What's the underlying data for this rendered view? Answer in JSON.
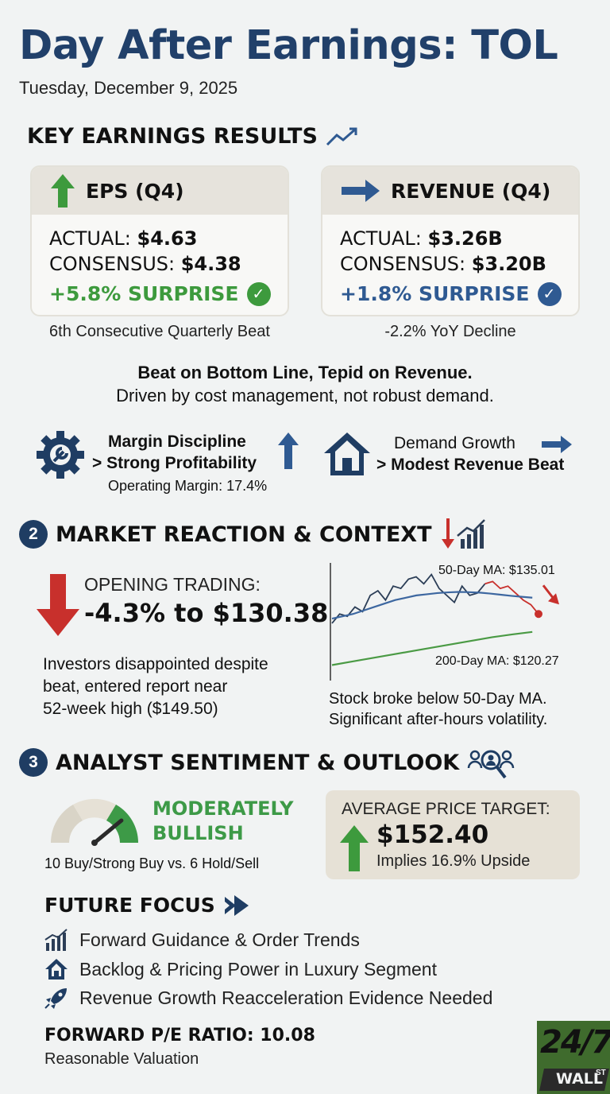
{
  "header": {
    "title": "Day After Earnings: TOL",
    "date": "Tuesday, December 9, 2025"
  },
  "key_results": {
    "heading": "KEY EARNINGS RESULTS",
    "eps": {
      "title": "EPS (Q4)",
      "actual_label": "ACTUAL:",
      "actual_value": "$4.63",
      "consensus_label": "CONSENSUS:",
      "consensus_value": "$4.38",
      "surprise": "+5.8% SURPRISE",
      "note": "6th Consecutive Quarterly Beat",
      "icon": "arrow-up-icon",
      "color": "#3d9a3d"
    },
    "revenue": {
      "title": "REVENUE (Q4)",
      "actual_label": "ACTUAL:",
      "actual_value": "$3.26B",
      "consensus_label": "CONSENSUS:",
      "consensus_value": "$3.20B",
      "surprise": "+1.8% SURPRISE",
      "note": "-2.2% YoY Decline",
      "icon": "arrow-right-icon",
      "color": "#2f5a92"
    },
    "summary_bold": "Beat on Bottom Line, Tepid on Revenue.",
    "summary_sub": "Driven by cost management, not robust demand.",
    "margin": {
      "line1": "Margin Discipline",
      "line2": "> Strong Profitability",
      "note": "Operating Margin: 17.4%"
    },
    "demand": {
      "line1": "Demand Growth",
      "line2": "> Modest Revenue Beat"
    }
  },
  "market": {
    "number": "2",
    "heading": "MARKET REACTION & CONTEXT",
    "opening_label": "OPENING TRADING:",
    "opening_value": "-4.3% to $130.38",
    "description": [
      "Investors disappointed despite",
      "beat, entered report near",
      "52-week high ($149.50)"
    ],
    "chart_caption": [
      "Stock broke below 50-Day MA.",
      "Significant after-hours volatility."
    ]
  },
  "chart_data": {
    "type": "line",
    "title": "",
    "xlabel": "",
    "ylabel": "",
    "annotations": [
      "50-Day MA: $135.01",
      "200-Day MA: $120.27"
    ],
    "series": [
      {
        "name": "",
        "color": "#2c3e57",
        "values": [
          124,
          128,
          127,
          131,
          129,
          136,
          138,
          134,
          140,
          139,
          143,
          144,
          141,
          145,
          139,
          136,
          133,
          140,
          136,
          137,
          141,
          142,
          139,
          140,
          137,
          134,
          132,
          128
        ]
      },
      {
        "name": "50-Day MA: $135.01",
        "color": "#3d67a0",
        "values": [
          126,
          127,
          128,
          129.5,
          131,
          132.5,
          134,
          135,
          136,
          136.5,
          137,
          137.3,
          137.5,
          137.4,
          137.2,
          136.8,
          136.3,
          135.8,
          135.4,
          135.01
        ]
      },
      {
        "name": "200-Day MA: $120.27",
        "color": "#4a9a44",
        "values": [
          106,
          107.5,
          109,
          110.5,
          112,
          113.5,
          115,
          116.5,
          118,
          119.2,
          120.27
        ]
      }
    ],
    "ylim": [
      100,
      150
    ],
    "red_segment_start": 20
  },
  "analyst": {
    "number": "3",
    "heading": "ANALYST SENTIMENT & OUTLOOK",
    "sentiment_line1": "MODERATELY",
    "sentiment_line2": "BULLISH",
    "gauge_level": 0.78,
    "ratings": "10 Buy/Strong Buy vs. 6 Hold/Sell",
    "target_label": "AVERAGE PRICE TARGET:",
    "target_value": "$152.40",
    "target_note": "Implies 16.9% Upside"
  },
  "future": {
    "heading": "FUTURE FOCUS",
    "items": [
      {
        "icon": "chart-icon",
        "text": "Forward Guidance & Order Trends"
      },
      {
        "icon": "house-icon",
        "text": "Backlog & Pricing Power in Luxury Segment"
      },
      {
        "icon": "rocket-icon",
        "text": "Revenue Growth Reacceleration Evidence Needed"
      }
    ]
  },
  "valuation": {
    "label": "FORWARD P/E RATIO: 10.08",
    "note": "Reasonable Valuation"
  },
  "logo": {
    "main": "24/7",
    "sub": "WALL",
    "sup": "ST"
  }
}
